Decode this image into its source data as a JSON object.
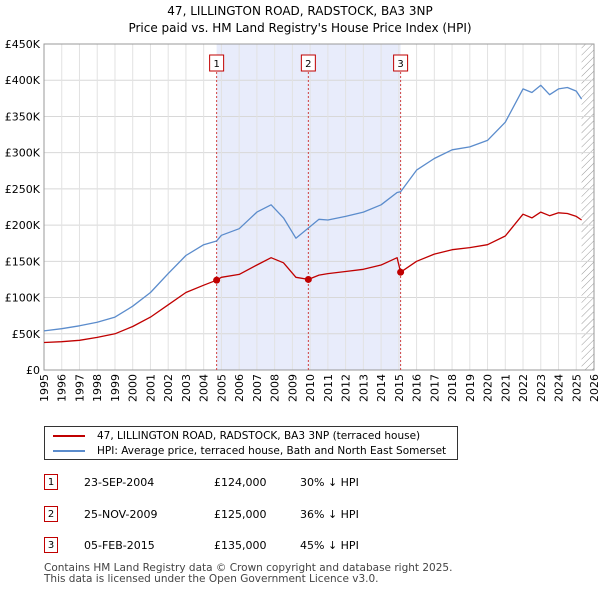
{
  "header": {
    "title_line1": "47, LILLINGTON ROAD, RADSTOCK, BA3 3NP",
    "title_line2": "Price paid vs. HM Land Registry's House Price Index (HPI)"
  },
  "chart_data": {
    "type": "line",
    "title": "47, LILLINGTON ROAD, RADSTOCK, BA3 3NP",
    "subtitle": "Price paid vs. HM Land Registry's House Price Index (HPI)",
    "xlabel": "",
    "ylabel": "",
    "xlim": [
      1995,
      2026
    ],
    "ylim": [
      0,
      450000
    ],
    "y_ticks": [
      0,
      50000,
      100000,
      150000,
      200000,
      250000,
      300000,
      350000,
      400000,
      450000
    ],
    "y_tick_labels": [
      "£0",
      "£50K",
      "£100K",
      "£150K",
      "£200K",
      "£250K",
      "£300K",
      "£350K",
      "£400K",
      "£450K"
    ],
    "x_ticks": [
      1995,
      1996,
      1997,
      1998,
      1999,
      2000,
      2001,
      2002,
      2003,
      2004,
      2005,
      2006,
      2007,
      2008,
      2009,
      2010,
      2011,
      2012,
      2013,
      2014,
      2015,
      2016,
      2017,
      2018,
      2019,
      2020,
      2021,
      2022,
      2023,
      2024,
      2025,
      2026
    ],
    "x_tick_labels": [
      "1995",
      "1996",
      "1997",
      "1998",
      "1999",
      "2000",
      "2001",
      "2002",
      "2003",
      "2004",
      "2005",
      "2006",
      "2007",
      "2008",
      "2009",
      "2010",
      "2011",
      "2012",
      "2013",
      "2014",
      "2015",
      "2016",
      "2017",
      "2018",
      "2019",
      "2020",
      "2021",
      "2022",
      "2023",
      "2024",
      "2025",
      "2026"
    ],
    "grid": true,
    "shaded_ranges": [
      [
        2004.73,
        2009.9
      ],
      [
        2009.9,
        2015.1
      ]
    ],
    "future_hatch_from": 2025.3,
    "series": [
      {
        "name": "47, LILLINGTON ROAD, RADSTOCK, BA3 3NP (terraced house)",
        "color": "#c00000",
        "x": [
          1995.0,
          1996.0,
          1997.0,
          1998.0,
          1999.0,
          2000.0,
          2001.0,
          2002.0,
          2003.0,
          2004.0,
          2004.73,
          2005.0,
          2006.0,
          2007.0,
          2007.8,
          2008.5,
          2009.2,
          2009.9,
          2010.5,
          2011.0,
          2012.0,
          2013.0,
          2014.0,
          2014.9,
          2015.1,
          2016.0,
          2017.0,
          2018.0,
          2019.0,
          2020.0,
          2021.0,
          2022.0,
          2022.5,
          2023.0,
          2023.5,
          2024.0,
          2024.5,
          2025.0,
          2025.3
        ],
        "values": [
          38000,
          39000,
          41000,
          45000,
          50000,
          60000,
          73000,
          90000,
          107000,
          117000,
          124000,
          128000,
          132000,
          145000,
          155000,
          148000,
          128000,
          125000,
          131000,
          133000,
          136000,
          139000,
          145000,
          155000,
          135000,
          150000,
          160000,
          166000,
          169000,
          173000,
          185000,
          215000,
          210000,
          218000,
          213000,
          217000,
          216000,
          212000,
          207000
        ]
      },
      {
        "name": "HPI: Average price, terraced house, Bath and North East Somerset",
        "color": "#5b8ccc",
        "x": [
          1995.0,
          1996.0,
          1997.0,
          1998.0,
          1999.0,
          2000.0,
          2001.0,
          2002.0,
          2003.0,
          2004.0,
          2004.73,
          2005.0,
          2006.0,
          2007.0,
          2007.8,
          2008.5,
          2009.2,
          2009.9,
          2010.5,
          2011.0,
          2012.0,
          2013.0,
          2014.0,
          2014.9,
          2015.1,
          2016.0,
          2017.0,
          2018.0,
          2019.0,
          2020.0,
          2021.0,
          2022.0,
          2022.5,
          2023.0,
          2023.5,
          2024.0,
          2024.5,
          2025.0,
          2025.3
        ],
        "values": [
          54000,
          57000,
          61000,
          66000,
          73000,
          88000,
          107000,
          133000,
          158000,
          173000,
          178000,
          186000,
          195000,
          218000,
          228000,
          210000,
          182000,
          196000,
          208000,
          207000,
          212000,
          218000,
          228000,
          245000,
          246000,
          276000,
          292000,
          304000,
          308000,
          317000,
          342000,
          388000,
          383000,
          393000,
          380000,
          388000,
          390000,
          385000,
          374000
        ]
      }
    ],
    "markers": [
      {
        "label": "1",
        "x": 2004.73,
        "y": 124000
      },
      {
        "label": "2",
        "x": 2009.9,
        "y": 125000
      },
      {
        "label": "3",
        "x": 2015.1,
        "y": 135000
      }
    ]
  },
  "legend": {
    "property_label": "47, LILLINGTON ROAD, RADSTOCK, BA3 3NP (terraced house)",
    "hpi_label": "HPI: Average price, terraced house, Bath and North East Somerset",
    "property_color": "#c00000",
    "hpi_color": "#5b8ccc"
  },
  "transactions": [
    {
      "num": "1",
      "date": "23-SEP-2004",
      "price": "£124,000",
      "hpi": "30% ↓ HPI"
    },
    {
      "num": "2",
      "date": "25-NOV-2009",
      "price": "£125,000",
      "hpi": "36% ↓ HPI"
    },
    {
      "num": "3",
      "date": "05-FEB-2015",
      "price": "£135,000",
      "hpi": "45% ↓ HPI"
    }
  ],
  "footer": {
    "line1": "Contains HM Land Registry data © Crown copyright and database right 2025.",
    "line2": "This data is licensed under the Open Government Licence v3.0."
  }
}
